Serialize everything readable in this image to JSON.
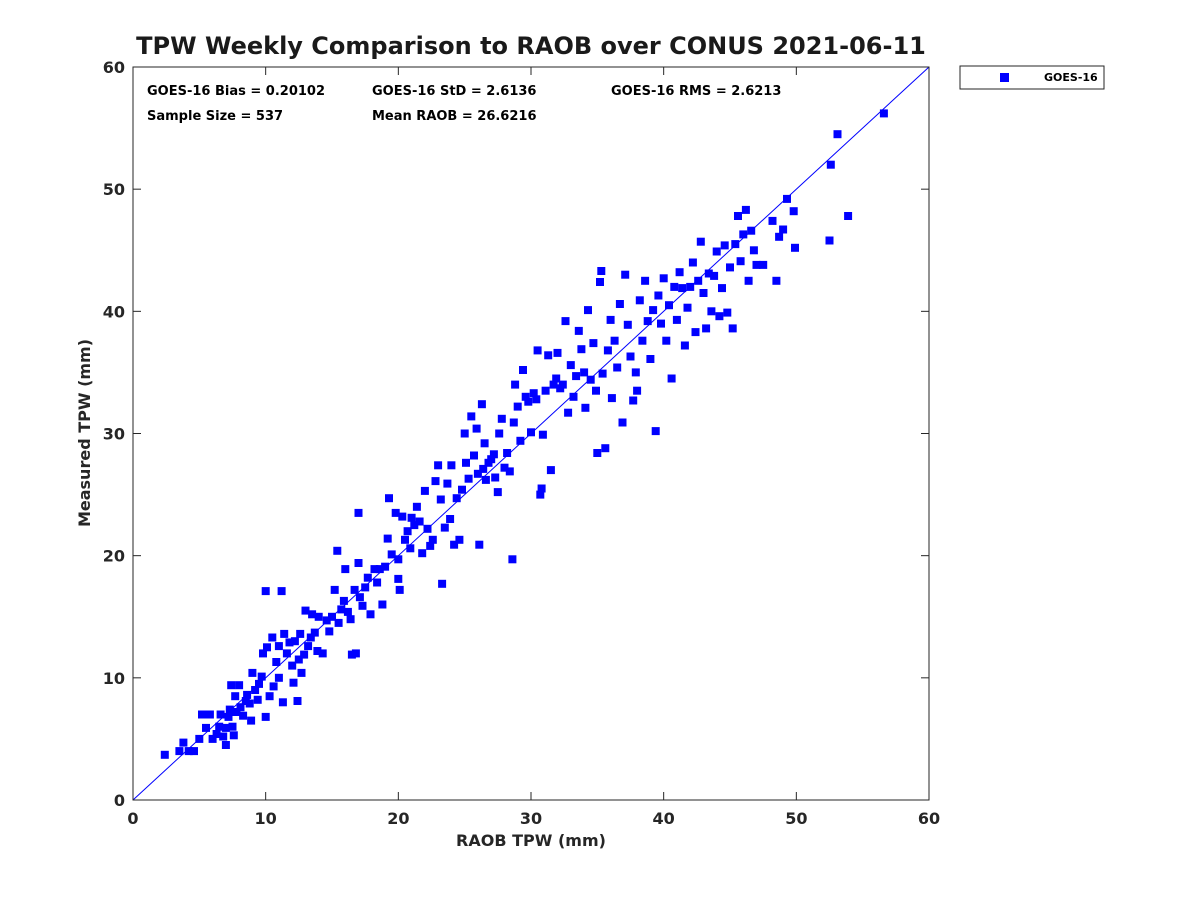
{
  "chart_data": {
    "type": "scatter",
    "title": "TPW Weekly Comparison to RAOB over CONUS 2021-06-11",
    "xlabel": "RAOB TPW (mm)",
    "ylabel": "Measured TPW (mm)",
    "xlim": [
      0,
      60
    ],
    "ylim": [
      0,
      60
    ],
    "xticks": [
      "0",
      "10",
      "20",
      "30",
      "40",
      "50",
      "60"
    ],
    "yticks": [
      "0",
      "10",
      "20",
      "30",
      "40",
      "50",
      "60"
    ],
    "legend_position": "outside-top-right",
    "stats": {
      "bias": "GOES-16 Bias = 0.20102",
      "std": "GOES-16 StD = 2.6136",
      "rms": "GOES-16 RMS = 2.6213",
      "sample": "Sample Size = 537",
      "mean": "Mean RAOB = 26.6216"
    },
    "reference_line": {
      "from": [
        0,
        0
      ],
      "to": [
        60,
        60
      ],
      "color": "#0000ff"
    },
    "series": [
      {
        "name": "GOES-16",
        "color": "#0000ff",
        "marker": "square",
        "points": [
          [
            2.4,
            3.7
          ],
          [
            3.5,
            4.0
          ],
          [
            3.8,
            4.7
          ],
          [
            4.2,
            4.0
          ],
          [
            4.6,
            4.0
          ],
          [
            5.0,
            5.0
          ],
          [
            5.2,
            7.0
          ],
          [
            5.5,
            5.9
          ],
          [
            5.8,
            7.0
          ],
          [
            6.0,
            5.0
          ],
          [
            6.3,
            5.4
          ],
          [
            6.5,
            6.0
          ],
          [
            6.6,
            7.0
          ],
          [
            6.8,
            5.2
          ],
          [
            7.0,
            5.9
          ],
          [
            7.0,
            4.5
          ],
          [
            7.2,
            6.8
          ],
          [
            7.3,
            7.4
          ],
          [
            7.4,
            9.4
          ],
          [
            7.5,
            6.0
          ],
          [
            7.6,
            5.3
          ],
          [
            7.7,
            8.5
          ],
          [
            7.8,
            7.2
          ],
          [
            8.0,
            9.4
          ],
          [
            8.1,
            7.6
          ],
          [
            8.3,
            6.9
          ],
          [
            8.5,
            8.1
          ],
          [
            8.6,
            8.6
          ],
          [
            8.8,
            7.9
          ],
          [
            8.9,
            6.5
          ],
          [
            9.0,
            10.4
          ],
          [
            9.2,
            9.0
          ],
          [
            9.4,
            8.2
          ],
          [
            9.5,
            9.5
          ],
          [
            9.7,
            10.1
          ],
          [
            9.8,
            12.0
          ],
          [
            10.0,
            6.8
          ],
          [
            10.0,
            17.1
          ],
          [
            10.1,
            12.5
          ],
          [
            10.3,
            8.5
          ],
          [
            10.5,
            13.3
          ],
          [
            10.6,
            9.3
          ],
          [
            10.8,
            11.3
          ],
          [
            11.0,
            10.0
          ],
          [
            11.0,
            12.6
          ],
          [
            11.2,
            17.1
          ],
          [
            11.3,
            8.0
          ],
          [
            11.4,
            13.6
          ],
          [
            11.6,
            12.0
          ],
          [
            11.8,
            12.9
          ],
          [
            12.0,
            11.0
          ],
          [
            12.1,
            9.6
          ],
          [
            12.2,
            13.0
          ],
          [
            12.4,
            8.1
          ],
          [
            12.5,
            11.5
          ],
          [
            12.6,
            13.6
          ],
          [
            12.7,
            10.4
          ],
          [
            12.9,
            11.9
          ],
          [
            13.0,
            15.5
          ],
          [
            13.2,
            12.6
          ],
          [
            13.4,
            13.3
          ],
          [
            13.5,
            15.2
          ],
          [
            13.7,
            13.7
          ],
          [
            13.9,
            12.2
          ],
          [
            14.0,
            15.0
          ],
          [
            14.3,
            12.0
          ],
          [
            14.6,
            14.7
          ],
          [
            14.8,
            13.8
          ],
          [
            15.0,
            15.0
          ],
          [
            15.2,
            17.2
          ],
          [
            15.4,
            20.4
          ],
          [
            15.5,
            14.5
          ],
          [
            15.7,
            15.6
          ],
          [
            15.9,
            16.3
          ],
          [
            16.0,
            18.9
          ],
          [
            16.2,
            15.4
          ],
          [
            16.4,
            14.8
          ],
          [
            16.5,
            11.9
          ],
          [
            16.7,
            17.2
          ],
          [
            16.8,
            12.0
          ],
          [
            17.0,
            19.4
          ],
          [
            17.0,
            23.5
          ],
          [
            17.1,
            16.6
          ],
          [
            17.3,
            15.9
          ],
          [
            17.5,
            17.4
          ],
          [
            17.7,
            18.2
          ],
          [
            17.9,
            15.2
          ],
          [
            18.2,
            18.9
          ],
          [
            18.4,
            17.8
          ],
          [
            18.6,
            18.9
          ],
          [
            18.8,
            16.0
          ],
          [
            19.0,
            19.1
          ],
          [
            19.2,
            21.4
          ],
          [
            19.3,
            24.7
          ],
          [
            19.5,
            20.1
          ],
          [
            19.8,
            23.5
          ],
          [
            20.0,
            18.1
          ],
          [
            20.0,
            19.7
          ],
          [
            20.1,
            17.2
          ],
          [
            20.3,
            23.2
          ],
          [
            20.5,
            21.3
          ],
          [
            20.7,
            22.0
          ],
          [
            20.9,
            20.6
          ],
          [
            21.0,
            23.1
          ],
          [
            21.2,
            22.5
          ],
          [
            21.4,
            24.0
          ],
          [
            21.6,
            22.8
          ],
          [
            21.8,
            20.2
          ],
          [
            22.0,
            25.3
          ],
          [
            22.2,
            22.2
          ],
          [
            22.4,
            20.8
          ],
          [
            22.6,
            21.3
          ],
          [
            22.8,
            26.1
          ],
          [
            23.0,
            27.4
          ],
          [
            23.2,
            24.6
          ],
          [
            23.3,
            17.7
          ],
          [
            23.5,
            22.3
          ],
          [
            23.7,
            25.9
          ],
          [
            23.9,
            23.0
          ],
          [
            24.0,
            27.4
          ],
          [
            24.2,
            20.9
          ],
          [
            24.4,
            24.7
          ],
          [
            24.6,
            21.3
          ],
          [
            24.8,
            25.4
          ],
          [
            25.0,
            30.0
          ],
          [
            25.1,
            27.6
          ],
          [
            25.3,
            26.3
          ],
          [
            25.5,
            31.4
          ],
          [
            25.7,
            28.2
          ],
          [
            25.9,
            30.4
          ],
          [
            26.0,
            26.7
          ],
          [
            26.1,
            20.9
          ],
          [
            26.3,
            32.4
          ],
          [
            26.4,
            27.1
          ],
          [
            26.5,
            29.2
          ],
          [
            26.6,
            26.2
          ],
          [
            26.8,
            27.6
          ],
          [
            27.0,
            27.9
          ],
          [
            27.2,
            28.3
          ],
          [
            27.3,
            26.4
          ],
          [
            27.5,
            25.2
          ],
          [
            27.6,
            30.0
          ],
          [
            27.8,
            31.2
          ],
          [
            28.0,
            27.2
          ],
          [
            28.2,
            28.4
          ],
          [
            28.4,
            26.9
          ],
          [
            28.6,
            19.7
          ],
          [
            28.7,
            30.9
          ],
          [
            28.8,
            34.0
          ],
          [
            29.0,
            32.2
          ],
          [
            29.2,
            29.4
          ],
          [
            29.4,
            35.2
          ],
          [
            29.6,
            33.0
          ],
          [
            29.8,
            32.6
          ],
          [
            30.0,
            30.1
          ],
          [
            30.2,
            33.3
          ],
          [
            30.4,
            32.8
          ],
          [
            30.5,
            36.8
          ],
          [
            30.7,
            25.0
          ],
          [
            30.8,
            25.5
          ],
          [
            30.9,
            29.9
          ],
          [
            31.1,
            33.5
          ],
          [
            31.3,
            36.4
          ],
          [
            31.5,
            27.0
          ],
          [
            31.7,
            34.0
          ],
          [
            31.9,
            34.5
          ],
          [
            32.0,
            36.6
          ],
          [
            32.2,
            33.7
          ],
          [
            32.4,
            34.0
          ],
          [
            32.6,
            39.2
          ],
          [
            32.8,
            31.7
          ],
          [
            33.0,
            35.6
          ],
          [
            33.2,
            33.0
          ],
          [
            33.4,
            34.7
          ],
          [
            33.6,
            38.4
          ],
          [
            33.8,
            36.9
          ],
          [
            34.0,
            35.0
          ],
          [
            34.1,
            32.1
          ],
          [
            34.3,
            40.1
          ],
          [
            34.5,
            34.4
          ],
          [
            34.7,
            37.4
          ],
          [
            34.9,
            33.5
          ],
          [
            35.0,
            28.4
          ],
          [
            35.2,
            42.4
          ],
          [
            35.3,
            43.3
          ],
          [
            35.4,
            34.9
          ],
          [
            35.6,
            28.8
          ],
          [
            35.8,
            36.8
          ],
          [
            36.0,
            39.3
          ],
          [
            36.1,
            32.9
          ],
          [
            36.3,
            37.6
          ],
          [
            36.5,
            35.4
          ],
          [
            36.7,
            40.6
          ],
          [
            36.9,
            30.9
          ],
          [
            37.1,
            43.0
          ],
          [
            37.3,
            38.9
          ],
          [
            37.5,
            36.3
          ],
          [
            37.7,
            32.7
          ],
          [
            37.9,
            35.0
          ],
          [
            38.0,
            33.5
          ],
          [
            38.2,
            40.9
          ],
          [
            38.4,
            37.6
          ],
          [
            38.6,
            42.5
          ],
          [
            38.8,
            39.2
          ],
          [
            39.0,
            36.1
          ],
          [
            39.2,
            40.1
          ],
          [
            39.4,
            30.2
          ],
          [
            39.6,
            41.3
          ],
          [
            39.8,
            39.0
          ],
          [
            40.0,
            42.7
          ],
          [
            40.2,
            37.6
          ],
          [
            40.4,
            40.5
          ],
          [
            40.6,
            34.5
          ],
          [
            40.8,
            42.0
          ],
          [
            41.0,
            39.3
          ],
          [
            41.2,
            43.2
          ],
          [
            41.4,
            41.9
          ],
          [
            41.6,
            37.2
          ],
          [
            41.8,
            40.3
          ],
          [
            42.0,
            42.0
          ],
          [
            42.2,
            44.0
          ],
          [
            42.4,
            38.3
          ],
          [
            42.6,
            42.5
          ],
          [
            42.8,
            45.7
          ],
          [
            43.0,
            41.5
          ],
          [
            43.2,
            38.6
          ],
          [
            43.4,
            43.1
          ],
          [
            43.6,
            40.0
          ],
          [
            43.8,
            42.9
          ],
          [
            44.0,
            44.9
          ],
          [
            44.2,
            39.6
          ],
          [
            44.4,
            41.9
          ],
          [
            44.6,
            45.4
          ],
          [
            44.8,
            39.9
          ],
          [
            45.0,
            43.6
          ],
          [
            45.2,
            38.6
          ],
          [
            45.4,
            45.5
          ],
          [
            45.6,
            47.8
          ],
          [
            45.8,
            44.1
          ],
          [
            46.0,
            46.3
          ],
          [
            46.2,
            48.3
          ],
          [
            46.4,
            42.5
          ],
          [
            46.6,
            46.6
          ],
          [
            46.8,
            45.0
          ],
          [
            47.0,
            43.8
          ],
          [
            47.5,
            43.8
          ],
          [
            48.2,
            47.4
          ],
          [
            48.5,
            42.5
          ],
          [
            48.7,
            46.1
          ],
          [
            49.0,
            46.7
          ],
          [
            49.3,
            49.2
          ],
          [
            49.8,
            48.2
          ],
          [
            49.9,
            45.2
          ],
          [
            52.5,
            45.8
          ],
          [
            52.6,
            52.0
          ],
          [
            53.1,
            54.5
          ],
          [
            53.9,
            47.8
          ],
          [
            56.6,
            56.2
          ]
        ]
      }
    ]
  }
}
